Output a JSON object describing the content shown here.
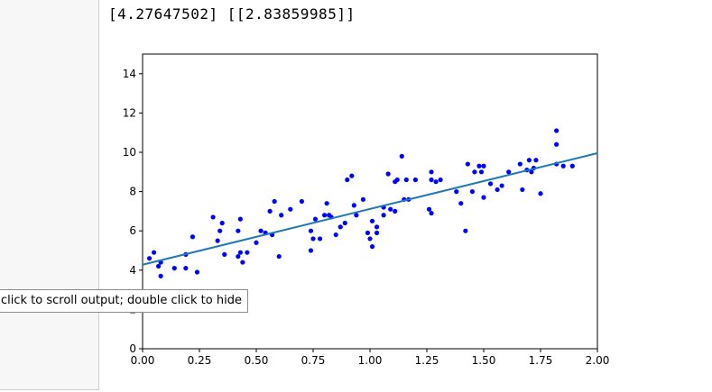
{
  "output": {
    "text": "[4.27647502] [[2.83859985]]",
    "tooltip": "click to scroll output; double click to hide"
  },
  "chart_data": {
    "type": "scatter",
    "xlim": [
      0,
      2
    ],
    "ylim": [
      0,
      15
    ],
    "xticks": [
      "0.00",
      "0.25",
      "0.50",
      "0.75",
      "1.00",
      "1.25",
      "1.50",
      "1.75",
      "2.00"
    ],
    "yticks": [
      "0",
      "2",
      "4",
      "6",
      "8",
      "10",
      "12",
      "14"
    ],
    "xtick_values": [
      0,
      0.25,
      0.5,
      0.75,
      1,
      1.25,
      1.5,
      1.75,
      2
    ],
    "ytick_values": [
      0,
      2,
      4,
      6,
      8,
      10,
      12,
      14
    ],
    "points_color": "#0000ff",
    "line_color": "#1f77b4",
    "line": {
      "intercept": 4.27647502,
      "slope": 2.83859985,
      "x": [
        0,
        2
      ]
    },
    "points": [
      [
        0.03,
        4.6
      ],
      [
        0.05,
        4.9
      ],
      [
        0.07,
        4.2
      ],
      [
        0.08,
        4.4
      ],
      [
        0.08,
        3.7
      ],
      [
        0.14,
        4.1
      ],
      [
        0.19,
        4.1
      ],
      [
        0.19,
        4.8
      ],
      [
        0.22,
        5.7
      ],
      [
        0.24,
        3.9
      ],
      [
        0.31,
        6.7
      ],
      [
        0.33,
        5.5
      ],
      [
        0.34,
        6.0
      ],
      [
        0.35,
        6.4
      ],
      [
        0.36,
        4.8
      ],
      [
        0.42,
        4.7
      ],
      [
        0.43,
        4.9
      ],
      [
        0.42,
        6.0
      ],
      [
        0.43,
        6.6
      ],
      [
        0.44,
        4.4
      ],
      [
        0.46,
        4.9
      ],
      [
        0.5,
        5.4
      ],
      [
        0.52,
        6.0
      ],
      [
        0.54,
        5.9
      ],
      [
        0.56,
        7.0
      ],
      [
        0.57,
        5.8
      ],
      [
        0.58,
        7.5
      ],
      [
        0.6,
        4.7
      ],
      [
        0.61,
        6.8
      ],
      [
        0.65,
        7.1
      ],
      [
        0.7,
        7.5
      ],
      [
        0.74,
        6.0
      ],
      [
        0.74,
        5.0
      ],
      [
        0.75,
        5.6
      ],
      [
        0.76,
        6.6
      ],
      [
        0.78,
        5.6
      ],
      [
        0.8,
        6.8
      ],
      [
        0.81,
        7.4
      ],
      [
        0.82,
        6.8
      ],
      [
        0.83,
        6.7
      ],
      [
        0.85,
        5.8
      ],
      [
        0.87,
        6.2
      ],
      [
        0.89,
        6.4
      ],
      [
        0.9,
        8.6
      ],
      [
        0.92,
        8.8
      ],
      [
        0.93,
        7.3
      ],
      [
        0.94,
        6.8
      ],
      [
        0.97,
        7.6
      ],
      [
        0.99,
        5.9
      ],
      [
        1.0,
        5.6
      ],
      [
        1.01,
        5.2
      ],
      [
        1.01,
        6.5
      ],
      [
        1.03,
        5.9
      ],
      [
        1.03,
        6.2
      ],
      [
        1.06,
        6.8
      ],
      [
        1.06,
        7.2
      ],
      [
        1.08,
        8.9
      ],
      [
        1.09,
        7.1
      ],
      [
        1.11,
        8.5
      ],
      [
        1.11,
        7.0
      ],
      [
        1.12,
        8.6
      ],
      [
        1.14,
        9.8
      ],
      [
        1.15,
        7.6
      ],
      [
        1.16,
        8.6
      ],
      [
        1.17,
        7.6
      ],
      [
        1.2,
        8.6
      ],
      [
        1.26,
        7.1
      ],
      [
        1.27,
        6.9
      ],
      [
        1.27,
        8.6
      ],
      [
        1.27,
        9.0
      ],
      [
        1.29,
        8.5
      ],
      [
        1.31,
        8.6
      ],
      [
        1.38,
        8.0
      ],
      [
        1.4,
        7.4
      ],
      [
        1.42,
        6.0
      ],
      [
        1.43,
        9.4
      ],
      [
        1.45,
        8.0
      ],
      [
        1.46,
        9.0
      ],
      [
        1.48,
        9.3
      ],
      [
        1.49,
        9.0
      ],
      [
        1.5,
        9.3
      ],
      [
        1.5,
        7.7
      ],
      [
        1.53,
        8.4
      ],
      [
        1.56,
        8.1
      ],
      [
        1.58,
        8.3
      ],
      [
        1.61,
        9.0
      ],
      [
        1.66,
        9.4
      ],
      [
        1.67,
        8.1
      ],
      [
        1.69,
        9.1
      ],
      [
        1.7,
        9.6
      ],
      [
        1.71,
        9.0
      ],
      [
        1.72,
        9.2
      ],
      [
        1.73,
        9.6
      ],
      [
        1.75,
        7.9
      ],
      [
        1.82,
        11.1
      ],
      [
        1.82,
        10.4
      ],
      [
        1.82,
        9.4
      ],
      [
        1.85,
        9.3
      ],
      [
        1.89,
        9.3
      ]
    ]
  }
}
